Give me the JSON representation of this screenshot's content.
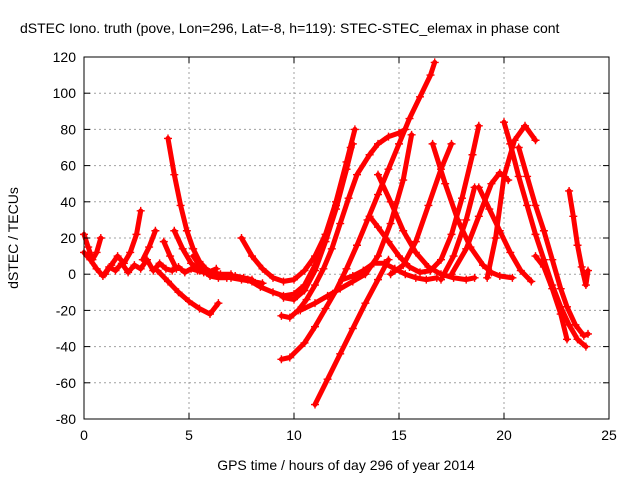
{
  "chart_data": {
    "type": "scatter",
    "title": "dSTEC Iono. truth (pove, Lon=296, Lat=-8, h=119): STEC-STEC_elemax in phase cont",
    "xlabel": "GPS time / hours of day 296 of year 2014",
    "ylabel": "dSTEC  / TECUs",
    "xlim": [
      0,
      25
    ],
    "ylim": [
      -80,
      120
    ],
    "xticks": [
      0,
      5,
      10,
      15,
      20,
      25
    ],
    "yticks": [
      -80,
      -60,
      -40,
      -20,
      0,
      20,
      40,
      60,
      80,
      100,
      120
    ],
    "grid": true,
    "marker": "plus",
    "color": "#ff0000",
    "series": [
      {
        "x": [
          0.0,
          0.3,
          0.6,
          0.9,
          1.2,
          1.5,
          1.8,
          2.1,
          2.4,
          2.7,
          3.0,
          3.3,
          3.6,
          3.9,
          4.2,
          4.5,
          4.8,
          5.1,
          5.4,
          5.7,
          6.0,
          6.5,
          7.0,
          7.5,
          8.0,
          8.5
        ],
        "y": [
          12,
          8,
          3,
          -1,
          4,
          2,
          6,
          1,
          5,
          3,
          8,
          2,
          6,
          3,
          2,
          4,
          1,
          3,
          2,
          1,
          0,
          -1,
          -2,
          -3,
          -4,
          -5
        ]
      },
      {
        "x": [
          0.0,
          0.2,
          0.4,
          0.6,
          0.8
        ],
        "y": [
          22,
          15,
          8,
          12,
          20
        ]
      },
      {
        "x": [
          1.0,
          1.3,
          1.6,
          1.9,
          2.2,
          2.5,
          2.7
        ],
        "y": [
          0,
          5,
          10,
          6,
          12,
          22,
          35
        ]
      },
      {
        "x": [
          2.8,
          3.1,
          3.4
        ],
        "y": [
          8,
          15,
          24
        ]
      },
      {
        "x": [
          3.8,
          4.1,
          4.4
        ],
        "y": [
          18,
          10,
          3
        ]
      },
      {
        "x": [
          4.0,
          4.3,
          4.6,
          4.9,
          5.2,
          5.5,
          5.8,
          6.1,
          6.5,
          7.0
        ],
        "y": [
          75,
          55,
          38,
          24,
          14,
          7,
          3,
          1,
          0,
          0
        ]
      },
      {
        "x": [
          4.3,
          4.7,
          5.1,
          5.5,
          5.9,
          6.3
        ],
        "y": [
          24,
          14,
          6,
          2,
          1,
          3
        ]
      },
      {
        "x": [
          3.5,
          4.0,
          4.5,
          5.0,
          5.5,
          6.0,
          6.4
        ],
        "y": [
          2,
          -4,
          -10,
          -15,
          -19,
          -22,
          -16
        ]
      },
      {
        "x": [
          5.2,
          5.6,
          6.0,
          6.4,
          6.8,
          7.2,
          7.6,
          8.0
        ],
        "y": [
          10,
          3,
          -1,
          -2,
          -2,
          -1,
          -2,
          -3
        ]
      },
      {
        "x": [
          7.5,
          8.0,
          8.5,
          9.0,
          9.5,
          10.0,
          10.5,
          11.0,
          11.5,
          12.0,
          12.5,
          12.9
        ],
        "y": [
          20,
          10,
          3,
          -2,
          -4,
          -3,
          2,
          10,
          22,
          40,
          62,
          80
        ]
      },
      {
        "x": [
          7.8,
          8.4,
          9.0,
          9.5,
          10.0,
          10.5,
          11.0,
          11.5,
          12.0,
          12.5,
          12.8
        ],
        "y": [
          -3,
          -7,
          -10,
          -12,
          -11,
          -6,
          5,
          20,
          38,
          58,
          72
        ]
      },
      {
        "x": [
          9.5,
          10.0,
          10.5,
          11.0,
          11.5,
          12.0,
          12.5,
          12.7
        ],
        "y": [
          -13,
          -14,
          -9,
          2,
          18,
          36,
          58,
          70
        ]
      },
      {
        "x": [
          9.4,
          9.8,
          10.2,
          10.6,
          11.0,
          11.4,
          11.8,
          12.2,
          12.6,
          13.0,
          13.6,
          14.0,
          14.5,
          15.0,
          15.3
        ],
        "y": [
          -23,
          -24,
          -20,
          -14,
          -6,
          3,
          14,
          28,
          42,
          55,
          66,
          72,
          76,
          78,
          80
        ]
      },
      {
        "x": [
          9.4,
          9.8,
          10.5,
          11.0,
          11.5,
          12.0,
          12.5,
          13.0,
          13.5,
          14.0,
          14.5,
          15.0,
          15.5,
          16.0,
          16.5,
          16.7
        ],
        "y": [
          -47,
          -46,
          -38,
          -29,
          -19,
          -9,
          3,
          16,
          30,
          44,
          58,
          72,
          86,
          98,
          110,
          117
        ]
      },
      {
        "x": [
          11.0,
          11.6,
          12.2,
          12.8,
          13.4,
          14.0,
          14.5
        ],
        "y": [
          -72,
          -58,
          -44,
          -30,
          -16,
          -3,
          8
        ]
      },
      {
        "x": [
          10.3,
          11.0,
          11.6,
          12.2,
          12.8,
          13.4,
          14.0,
          14.6,
          15.2,
          15.6
        ],
        "y": [
          -20,
          -16,
          -12,
          -8,
          -4,
          0,
          10,
          28,
          52,
          77
        ]
      },
      {
        "x": [
          12.3,
          12.8,
          13.3,
          13.8,
          14.3,
          14.8,
          15.3,
          15.8,
          16.3,
          16.8
        ],
        "y": [
          -3,
          -1,
          2,
          6,
          6,
          3,
          0,
          -2,
          -3,
          -2
        ]
      },
      {
        "x": [
          13.6,
          14.0,
          14.5,
          15.0,
          15.5,
          16.0,
          16.5,
          17.0,
          17.5,
          18.0,
          18.5,
          18.8
        ],
        "y": [
          32,
          26,
          18,
          10,
          4,
          1,
          2,
          8,
          22,
          42,
          66,
          82
        ]
      },
      {
        "x": [
          14.0,
          14.6,
          15.2,
          15.8,
          16.4,
          17.0,
          17.6,
          18.2,
          18.6
        ],
        "y": [
          55,
          40,
          24,
          12,
          4,
          0,
          -2,
          -3,
          -2
        ]
      },
      {
        "x": [
          14.6,
          15.2,
          15.8,
          16.4,
          17.0,
          17.5
        ],
        "y": [
          0,
          5,
          18,
          38,
          58,
          72
        ]
      },
      {
        "x": [
          16.6,
          17.2,
          17.8,
          18.4,
          19.0,
          19.4,
          19.8,
          20.4
        ],
        "y": [
          72,
          50,
          30,
          15,
          5,
          1,
          -1,
          -2
        ]
      },
      {
        "x": [
          17.0,
          17.6,
          18.2,
          18.6
        ],
        "y": [
          -3,
          10,
          30,
          48
        ]
      },
      {
        "x": [
          17.5,
          18.2,
          18.8,
          19.4,
          19.8,
          20.2
        ],
        "y": [
          0,
          14,
          32,
          50,
          56,
          52
        ]
      },
      {
        "x": [
          18.8,
          19.3,
          19.8,
          20.3,
          20.8,
          21.3
        ],
        "y": [
          48,
          36,
          24,
          12,
          2,
          -4
        ]
      },
      {
        "x": [
          19.2,
          19.6,
          20.0,
          20.5,
          21.0,
          21.5
        ],
        "y": [
          -2,
          20,
          54,
          74,
          82,
          74
        ]
      },
      {
        "x": [
          20.0,
          20.3,
          20.7,
          21.1,
          21.5,
          21.9,
          22.3,
          22.7,
          23.1,
          23.5,
          23.9
        ],
        "y": [
          84,
          72,
          54,
          38,
          22,
          8,
          -6,
          -18,
          -28,
          -36,
          -40
        ]
      },
      {
        "x": [
          20.7,
          21.1,
          21.5,
          21.9,
          22.3,
          22.7,
          23.0,
          23.4,
          23.8,
          24.0
        ],
        "y": [
          70,
          54,
          38,
          24,
          8,
          -8,
          -18,
          -28,
          -34,
          -33
        ]
      },
      {
        "x": [
          21.5,
          21.9,
          22.3,
          22.7,
          23.0
        ],
        "y": [
          10,
          4,
          -8,
          -22,
          -36
        ]
      },
      {
        "x": [
          23.1,
          23.3,
          23.5,
          23.7,
          23.9,
          24.0
        ],
        "y": [
          46,
          32,
          16,
          4,
          -6,
          2
        ]
      }
    ]
  }
}
